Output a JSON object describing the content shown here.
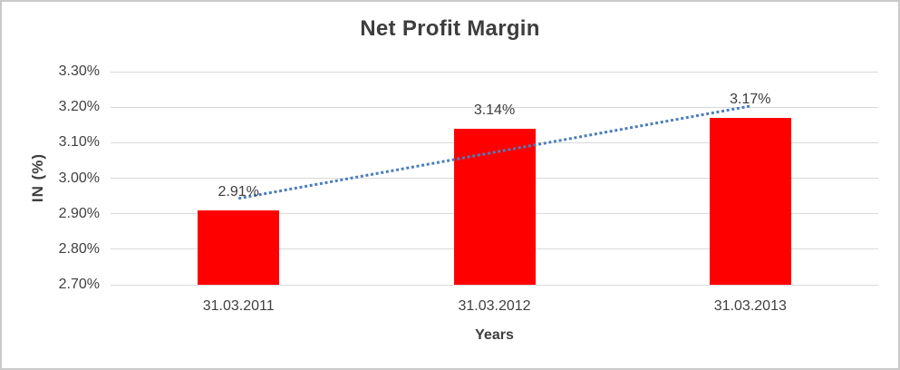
{
  "chart_data": {
    "type": "bar",
    "title": "Net Profit Margin",
    "xlabel": "Years",
    "ylabel": "IN (%)",
    "categories": [
      "31.03.2011",
      "31.03.2012",
      "31.03.2013"
    ],
    "values": [
      2.91,
      3.14,
      3.17
    ],
    "data_labels": [
      "2.91%",
      "3.14%",
      "3.17%"
    ],
    "ylim": [
      2.7,
      3.3
    ],
    "ytick_step": 0.1,
    "ytick_labels": [
      "3.30%",
      "3.20%",
      "3.10%",
      "3.00%",
      "2.90%",
      "2.80%",
      "2.70%"
    ],
    "grid": true,
    "legend": false,
    "trendline": {
      "type": "linear",
      "style": "dotted",
      "start_value": 2.943,
      "end_value": 3.203
    },
    "colors": {
      "bar": "#ff0000",
      "trendline": "#4a7ebc",
      "gridline": "#d9d9d9",
      "text": "#404040"
    }
  }
}
